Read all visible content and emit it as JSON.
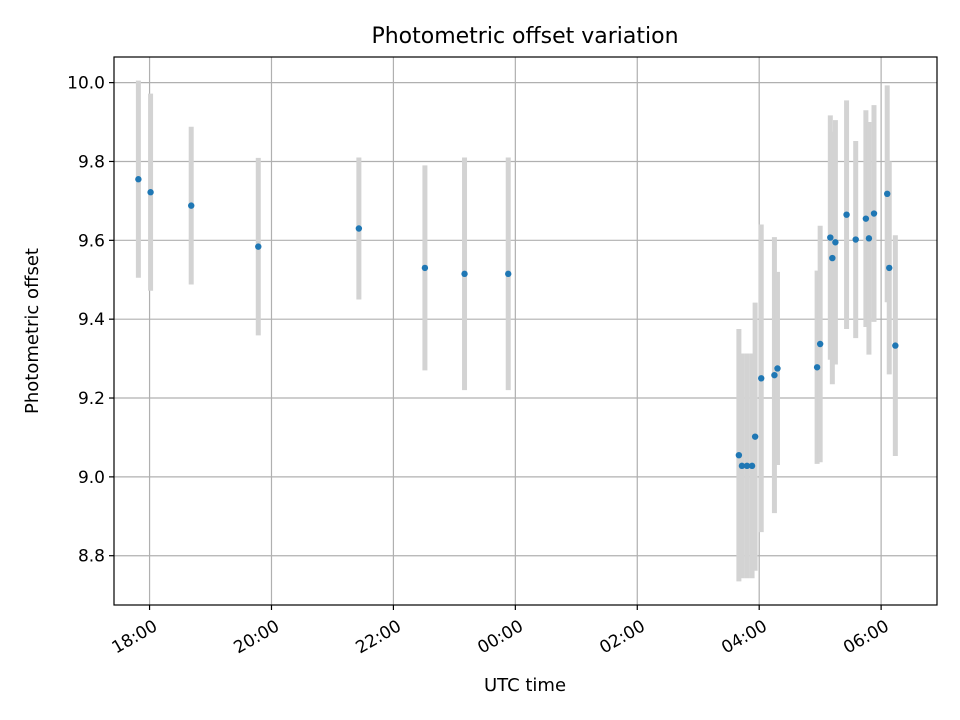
{
  "chart_data": {
    "type": "scatter",
    "title": "Photometric offset variation",
    "xlabel": "UTC time",
    "ylabel": "Photometric offset",
    "xlim": [
      "17:25",
      "30:55"
    ],
    "ylim": [
      8.675,
      10.065
    ],
    "x_ticks": [
      "18:00",
      "20:00",
      "22:00",
      "00:00",
      "02:00",
      "04:00",
      "06:00"
    ],
    "y_ticks": [
      "8.8",
      "9.0",
      "9.2",
      "9.4",
      "9.6",
      "9.8",
      "10.0"
    ],
    "grid": true,
    "colors": {
      "marker": "#1f77b4",
      "errorbar": "#d3d3d3",
      "grid": "#b0b0b0"
    },
    "points": [
      {
        "x": "17:49",
        "y": 9.755,
        "err": 0.25
      },
      {
        "x": "18:01",
        "y": 9.722,
        "err": 0.25
      },
      {
        "x": "18:41",
        "y": 9.688,
        "err": 0.2
      },
      {
        "x": "19:47",
        "y": 9.584,
        "err": 0.225
      },
      {
        "x": "21:26",
        "y": 9.63,
        "err": 0.18
      },
      {
        "x": "22:31",
        "y": 9.53,
        "err": 0.26
      },
      {
        "x": "23:10",
        "y": 9.515,
        "err": 0.295
      },
      {
        "x": "23:53",
        "y": 9.515,
        "err": 0.295
      },
      {
        "x": "03:40",
        "y": 9.055,
        "err": 0.32
      },
      {
        "x": "03:43",
        "y": 9.028,
        "err": 0.285
      },
      {
        "x": "03:48",
        "y": 9.028,
        "err": 0.285
      },
      {
        "x": "03:53",
        "y": 9.028,
        "err": 0.285
      },
      {
        "x": "03:56",
        "y": 9.102,
        "err": 0.34
      },
      {
        "x": "04:02",
        "y": 9.25,
        "err": 0.39
      },
      {
        "x": "04:15",
        "y": 9.258,
        "err": 0.35
      },
      {
        "x": "04:18",
        "y": 9.275,
        "err": 0.245
      },
      {
        "x": "04:57",
        "y": 9.278,
        "err": 0.245
      },
      {
        "x": "05:00",
        "y": 9.337,
        "err": 0.3
      },
      {
        "x": "05:10",
        "y": 9.607,
        "err": 0.31
      },
      {
        "x": "05:12",
        "y": 9.555,
        "err": 0.32
      },
      {
        "x": "05:15",
        "y": 9.595,
        "err": 0.31
      },
      {
        "x": "05:26",
        "y": 9.665,
        "err": 0.29
      },
      {
        "x": "05:35",
        "y": 9.602,
        "err": 0.25
      },
      {
        "x": "05:45",
        "y": 9.655,
        "err": 0.275
      },
      {
        "x": "05:48",
        "y": 9.605,
        "err": 0.295
      },
      {
        "x": "05:53",
        "y": 9.668,
        "err": 0.275
      },
      {
        "x": "06:06",
        "y": 9.718,
        "err": 0.275
      },
      {
        "x": "06:08",
        "y": 9.53,
        "err": 0.27
      },
      {
        "x": "06:14",
        "y": 9.333,
        "err": 0.28
      }
    ]
  }
}
